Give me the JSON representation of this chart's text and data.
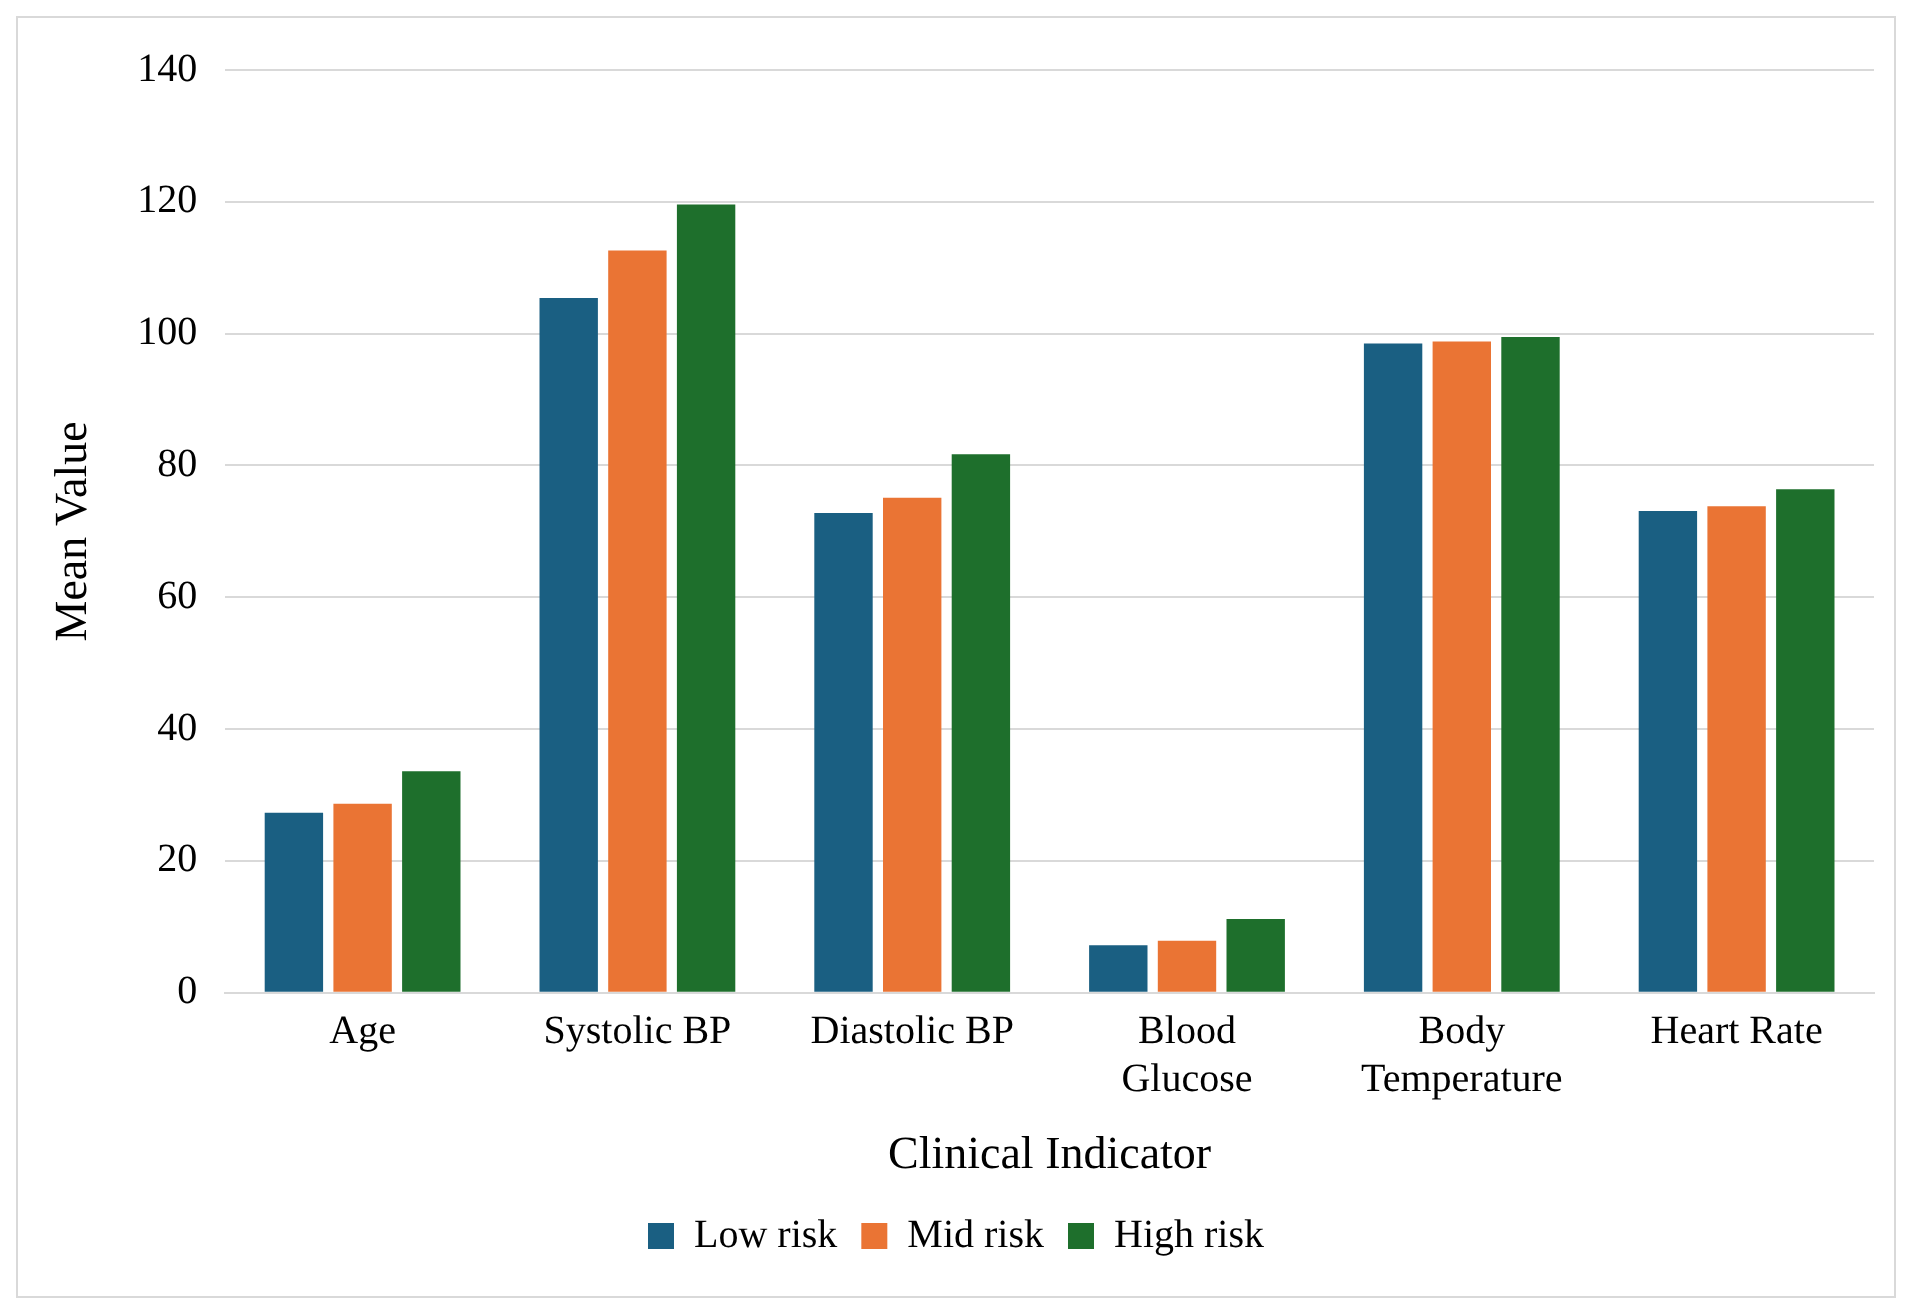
{
  "chart_data": {
    "type": "bar",
    "xlabel": "Clinical Indicator",
    "ylabel": "Mean Value",
    "categories": [
      "Age",
      "Systolic BP",
      "Diastolic BP",
      "Blood Glucose",
      "Body Temperature",
      "Heart Rate"
    ],
    "series": [
      {
        "name": "Low risk",
        "color": "#1a5f82",
        "values": [
          27.3,
          105.4,
          72.8,
          7.2,
          98.5,
          73.1
        ]
      },
      {
        "name": "Mid risk",
        "color": "#ea7434",
        "values": [
          28.7,
          112.6,
          75.1,
          7.9,
          98.8,
          73.8
        ]
      },
      {
        "name": "High risk",
        "color": "#1e6f2c",
        "values": [
          33.6,
          119.6,
          81.7,
          11.2,
          99.5,
          76.4
        ]
      }
    ],
    "ylim": [
      0,
      140
    ],
    "yticks": [
      0,
      20,
      40,
      60,
      80,
      100,
      120,
      140
    ],
    "grid": "y",
    "legend": "bottom"
  }
}
